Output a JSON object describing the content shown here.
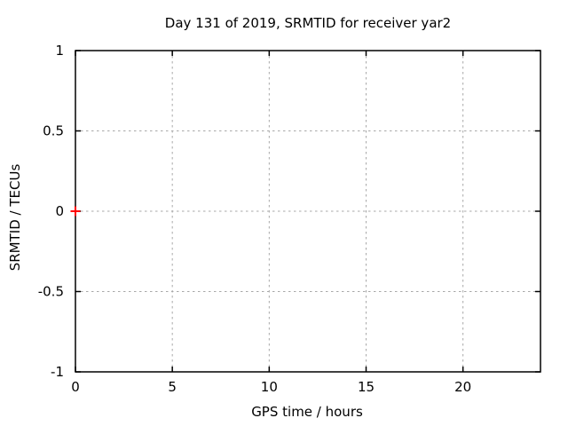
{
  "window": {
    "background": "#ffffff"
  },
  "chart_data": {
    "type": "scatter",
    "title": "Day 131 of 2019, SRMTID for receiver yar2",
    "xlabel": "GPS time / hours",
    "ylabel": "SRMTID / TECUs",
    "xlim": [
      0,
      24
    ],
    "ylim": [
      -1,
      1
    ],
    "xticks": {
      "values": [
        0,
        5,
        10,
        15,
        20
      ],
      "labels": [
        "0",
        "5",
        "10",
        "15",
        "20"
      ]
    },
    "yticks": {
      "values": [
        -1,
        -0.5,
        0,
        0.5,
        1
      ],
      "labels": [
        "-1",
        "-0.5",
        "0",
        "0.5",
        "1"
      ]
    },
    "grid": "dotted",
    "grid_on": true,
    "legend": "none",
    "colors": {
      "border": "#000000",
      "grid": "#a8a8a8",
      "text": "#000000",
      "marker": "#ff0000"
    },
    "series": [
      {
        "name": "SRMTID",
        "marker": "plus",
        "color": "#ff0000",
        "points": [
          {
            "x": 0,
            "y": 0
          }
        ]
      }
    ]
  }
}
